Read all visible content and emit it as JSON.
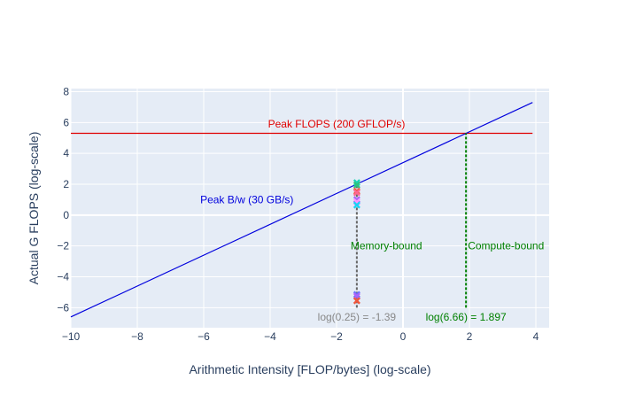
{
  "chart_data": {
    "type": "line",
    "xlabel": "Arithmetic Intensity [FLOP/bytes] (log-scale)",
    "ylabel": "Actual G FLOPS (log-scale)",
    "xlim": [
      -10,
      4.4
    ],
    "ylim": [
      -7.3,
      8.2
    ],
    "x_ticks": [
      -10,
      -8,
      -6,
      -4,
      -2,
      0,
      2,
      4
    ],
    "y_ticks": [
      -6,
      -4,
      -2,
      0,
      2,
      4,
      6,
      8
    ],
    "x_tick_labels": [
      "−10",
      "−8",
      "−6",
      "−4",
      "−2",
      "0",
      "2",
      "4"
    ],
    "y_tick_labels": [
      "−6",
      "−4",
      "−2",
      "0",
      "2",
      "4",
      "6",
      "8"
    ],
    "grid": true,
    "colors": {
      "plot_bg": "#e5ecf6",
      "grid": "#ffffff",
      "axis_text": "#2a3f5f",
      "peak_flops": "#e00000",
      "bandwidth": "#0000dd",
      "ridge": "#008000",
      "intensity_marker": "#666666"
    },
    "series": [
      {
        "name": "Peak FLOPS (200 GFLOP/s)",
        "kind": "hline",
        "y": 5.3,
        "x": [
          -10,
          3.9
        ],
        "color": "#e00000"
      },
      {
        "name": "Peak B/w (30 GB/s)",
        "kind": "line",
        "x": [
          -10,
          3.9
        ],
        "y": [
          -6.6,
          7.3
        ],
        "color": "#0000dd"
      },
      {
        "name": "log(6.66) = 1.897",
        "kind": "vline",
        "x": 1.897,
        "y": [
          -6.0,
          5.3
        ],
        "color": "#008000",
        "dash": true
      },
      {
        "name": "log(0.25) = -1.39",
        "kind": "vline",
        "x": -1.39,
        "y": [
          -6.0,
          2.1
        ],
        "color": "#666666",
        "dash": true
      }
    ],
    "points": [
      {
        "x": -1.39,
        "y": 2.1,
        "color": "#19d3b5"
      },
      {
        "x": -1.39,
        "y": 1.95,
        "color": "#2ec27e"
      },
      {
        "x": -1.39,
        "y": 1.55,
        "color": "#ef553b"
      },
      {
        "x": -1.39,
        "y": 1.45,
        "color": "#ff6692"
      },
      {
        "x": -1.39,
        "y": 1.0,
        "color": "#ab63fa"
      },
      {
        "x": -1.39,
        "y": 0.85,
        "color": "#ff97ff"
      },
      {
        "x": -1.39,
        "y": 0.65,
        "color": "#19d3f3"
      },
      {
        "x": -1.39,
        "y": -5.15,
        "color": "#636efa"
      },
      {
        "x": -1.39,
        "y": -5.25,
        "color": "#ab63fa"
      },
      {
        "x": -1.39,
        "y": -5.55,
        "color": "#ef553b"
      }
    ],
    "annotations": [
      {
        "text": "Peak FLOPS (200 GFLOP/s)",
        "x": -2.0,
        "y": 5.9,
        "color": "#e00000"
      },
      {
        "text": "Peak B/w (30 GB/s)",
        "x": -4.7,
        "y": 1.0,
        "color": "#0000dd"
      },
      {
        "text": "Memory-bound",
        "x": -0.5,
        "y": -2.0,
        "color": "#008000"
      },
      {
        "text": "Compute-bound",
        "x": 3.1,
        "y": -2.0,
        "color": "#008000"
      },
      {
        "text": "log(0.25) = -1.39",
        "x": -1.39,
        "y": -6.6,
        "color": "#888888"
      },
      {
        "text": "log(6.66) = 1.897",
        "x": 1.897,
        "y": -6.6,
        "color": "#008000"
      }
    ]
  }
}
